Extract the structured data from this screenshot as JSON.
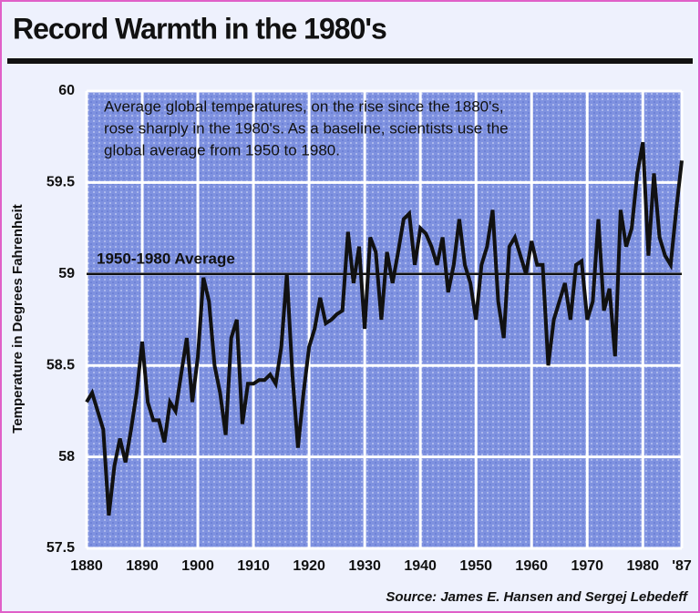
{
  "chart_data": {
    "type": "line",
    "title": "Record Warmth in the 1980's",
    "annotation": [
      "Average global temperatures, on the rise since the 1880's,",
      "rose sharply in the 1980's. As a baseline, scientists use the",
      "global average from 1950 to 1980."
    ],
    "y_label": "Temperature in Degrees Fahrenheit",
    "source": "Source: James E. Hansen and Sergej Lebedeff",
    "reference": {
      "value": 59,
      "label": "1950-1980 Average"
    },
    "x": [
      1880,
      1881,
      1882,
      1883,
      1884,
      1885,
      1886,
      1887,
      1888,
      1889,
      1890,
      1891,
      1892,
      1893,
      1894,
      1895,
      1896,
      1897,
      1898,
      1899,
      1900,
      1901,
      1902,
      1903,
      1904,
      1905,
      1906,
      1907,
      1908,
      1909,
      1910,
      1911,
      1912,
      1913,
      1914,
      1915,
      1916,
      1917,
      1918,
      1919,
      1920,
      1921,
      1922,
      1923,
      1924,
      1925,
      1926,
      1927,
      1928,
      1929,
      1930,
      1931,
      1932,
      1933,
      1934,
      1935,
      1936,
      1937,
      1938,
      1939,
      1940,
      1941,
      1942,
      1943,
      1944,
      1945,
      1946,
      1947,
      1948,
      1949,
      1950,
      1951,
      1952,
      1953,
      1954,
      1955,
      1956,
      1957,
      1958,
      1959,
      1960,
      1961,
      1962,
      1963,
      1964,
      1965,
      1966,
      1967,
      1968,
      1969,
      1970,
      1971,
      1972,
      1973,
      1974,
      1975,
      1976,
      1977,
      1978,
      1979,
      1980,
      1981,
      1982,
      1983,
      1984,
      1985,
      1986,
      1987
    ],
    "values": [
      58.3,
      58.35,
      58.25,
      58.15,
      57.68,
      57.95,
      58.1,
      57.97,
      58.15,
      58.35,
      58.63,
      58.3,
      58.2,
      58.2,
      58.08,
      58.3,
      58.25,
      58.45,
      58.65,
      58.3,
      58.55,
      58.98,
      58.85,
      58.5,
      58.35,
      58.12,
      58.65,
      58.75,
      58.18,
      58.4,
      58.4,
      58.42,
      58.42,
      58.45,
      58.4,
      58.6,
      59.0,
      58.45,
      58.05,
      58.35,
      58.6,
      58.7,
      58.87,
      58.73,
      58.75,
      58.78,
      58.8,
      59.23,
      58.95,
      59.15,
      58.7,
      59.2,
      59.12,
      58.75,
      59.12,
      58.95,
      59.12,
      59.3,
      59.33,
      59.05,
      59.25,
      59.22,
      59.15,
      59.05,
      59.2,
      58.9,
      59.05,
      59.3,
      59.05,
      58.95,
      58.75,
      59.05,
      59.15,
      59.35,
      58.85,
      58.65,
      59.15,
      59.2,
      59.1,
      59.0,
      59.18,
      59.05,
      59.05,
      58.5,
      58.75,
      58.85,
      58.95,
      58.75,
      59.05,
      59.07,
      58.75,
      58.85,
      59.3,
      58.8,
      58.92,
      58.55,
      59.35,
      59.15,
      59.25,
      59.55,
      59.72,
      59.1,
      59.55,
      59.2,
      59.1,
      59.05,
      59.35,
      59.62
    ],
    "color": "#111111",
    "xlim": [
      1880,
      1987
    ],
    "xticks": [
      1880,
      1890,
      1900,
      1910,
      1920,
      1930,
      1940,
      1950,
      1960,
      1970,
      1980,
      {
        "value": 1987,
        "label": "'87"
      }
    ],
    "ylim": [
      57.5,
      60
    ],
    "yticks": [
      57.5,
      58,
      58.5,
      59,
      59.5,
      60
    ],
    "grid": true
  }
}
